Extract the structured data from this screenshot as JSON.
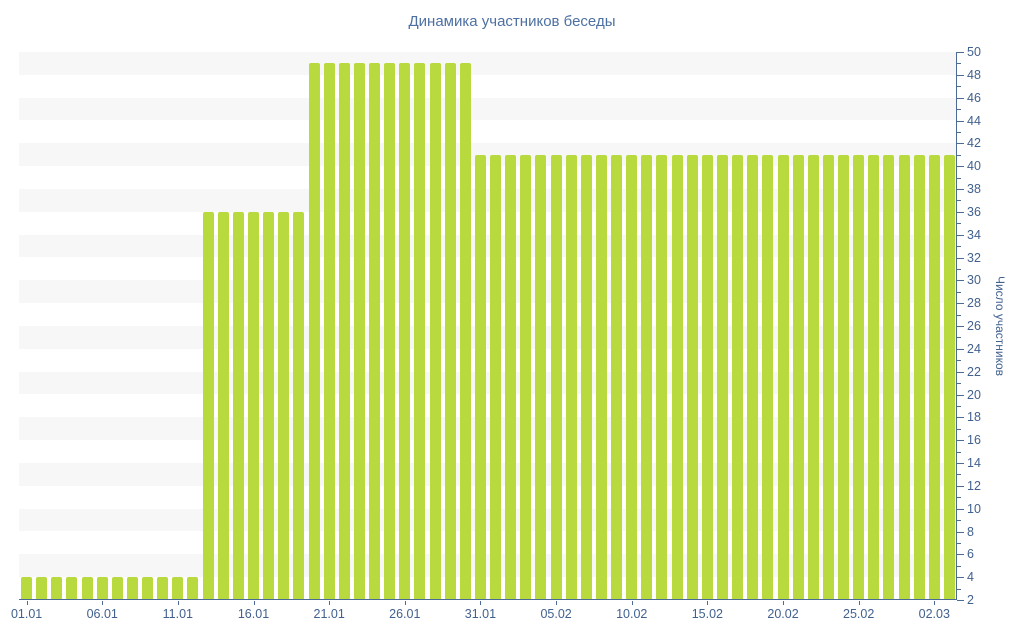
{
  "chart_data": {
    "type": "bar",
    "title": "Динамика участников беседы",
    "xlabel": "",
    "ylabel": "Число участников",
    "ylim": [
      2,
      50
    ],
    "ytick_step": 2,
    "grid": "horizontal-bands",
    "legend": "none",
    "xtick_labels": [
      "01.01",
      "06.01",
      "11.01",
      "16.01",
      "21.01",
      "26.01",
      "31.01",
      "05.02",
      "10.02",
      "15.02",
      "20.02",
      "25.02",
      "02.03"
    ],
    "xtick_indices": [
      0,
      5,
      10,
      15,
      20,
      25,
      30,
      35,
      40,
      45,
      50,
      55,
      60
    ],
    "categories": [
      "01.01",
      "02.01",
      "03.01",
      "04.01",
      "05.01",
      "06.01",
      "07.01",
      "08.01",
      "09.01",
      "10.01",
      "11.01",
      "12.01",
      "13.01",
      "14.01",
      "15.01",
      "16.01",
      "17.01",
      "18.01",
      "19.01",
      "20.01",
      "21.01",
      "22.01",
      "23.01",
      "24.01",
      "25.01",
      "26.01",
      "27.01",
      "28.01",
      "29.01",
      "30.01",
      "31.01",
      "01.02",
      "02.02",
      "03.02",
      "04.02",
      "05.02",
      "06.02",
      "07.02",
      "08.02",
      "09.02",
      "10.02",
      "11.02",
      "12.02",
      "13.02",
      "14.02",
      "15.02",
      "16.02",
      "17.02",
      "18.02",
      "19.02",
      "20.02",
      "21.02",
      "22.02",
      "23.02",
      "24.02",
      "25.02",
      "26.02",
      "27.02",
      "28.02",
      "01.03",
      "02.03",
      "03.03"
    ],
    "values": [
      4,
      4,
      4,
      4,
      4,
      4,
      4,
      4,
      4,
      4,
      4,
      4,
      36,
      36,
      36,
      36,
      36,
      36,
      36,
      49,
      49,
      49,
      49,
      49,
      49,
      49,
      49,
      49,
      49,
      49,
      41,
      41,
      41,
      41,
      41,
      41,
      41,
      41,
      41,
      41,
      41,
      41,
      41,
      41,
      41,
      41,
      41,
      41,
      41,
      41,
      41,
      41,
      41,
      41,
      41,
      41,
      41,
      41,
      41,
      41,
      41,
      41
    ],
    "colors": {
      "bar": "#b8da3e",
      "band": "#f7f7f7",
      "axis": "#4c6b97",
      "tick_label": "#41618e",
      "title": "#4d70a2"
    }
  }
}
